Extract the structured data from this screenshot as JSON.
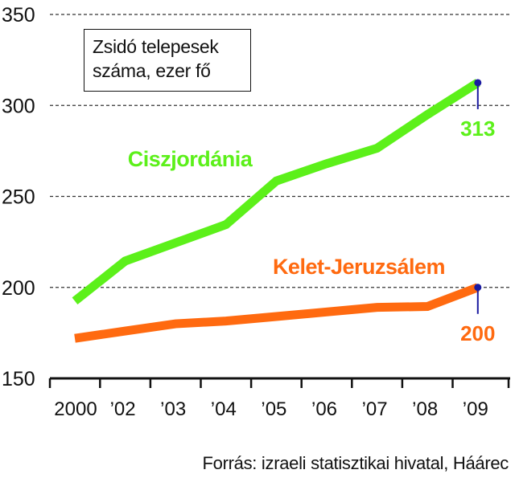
{
  "chart_data": {
    "type": "line",
    "title": "Zsidó telepesek száma, ezer fő",
    "title_lines": [
      "Zsidó telepesek",
      "száma, ezer fő"
    ],
    "categories": [
      "2000",
      "’02",
      "’03",
      "’04",
      "’05",
      "’06",
      "’07",
      "’08",
      "’09"
    ],
    "ylim": [
      150,
      350
    ],
    "yticks": [
      150,
      200,
      250,
      300,
      350
    ],
    "grid": true,
    "series": [
      {
        "name": "Ciszjordánia",
        "color": "#5cf01a",
        "values": [
          192.5,
          214.5,
          224.5,
          234.5,
          258.5,
          268,
          276.5,
          295,
          312.5
        ],
        "end_label": "313"
      },
      {
        "name": "Kelet-Jeruzsálem",
        "color": "#ff6a10",
        "values": [
          172,
          176,
          180,
          181.5,
          184,
          186.5,
          189,
          189.5,
          200
        ],
        "end_label": "200"
      }
    ],
    "marker_color": "#1a1aa0"
  },
  "source": "Forrás: izraeli statisztikai hivatal, Háárec"
}
